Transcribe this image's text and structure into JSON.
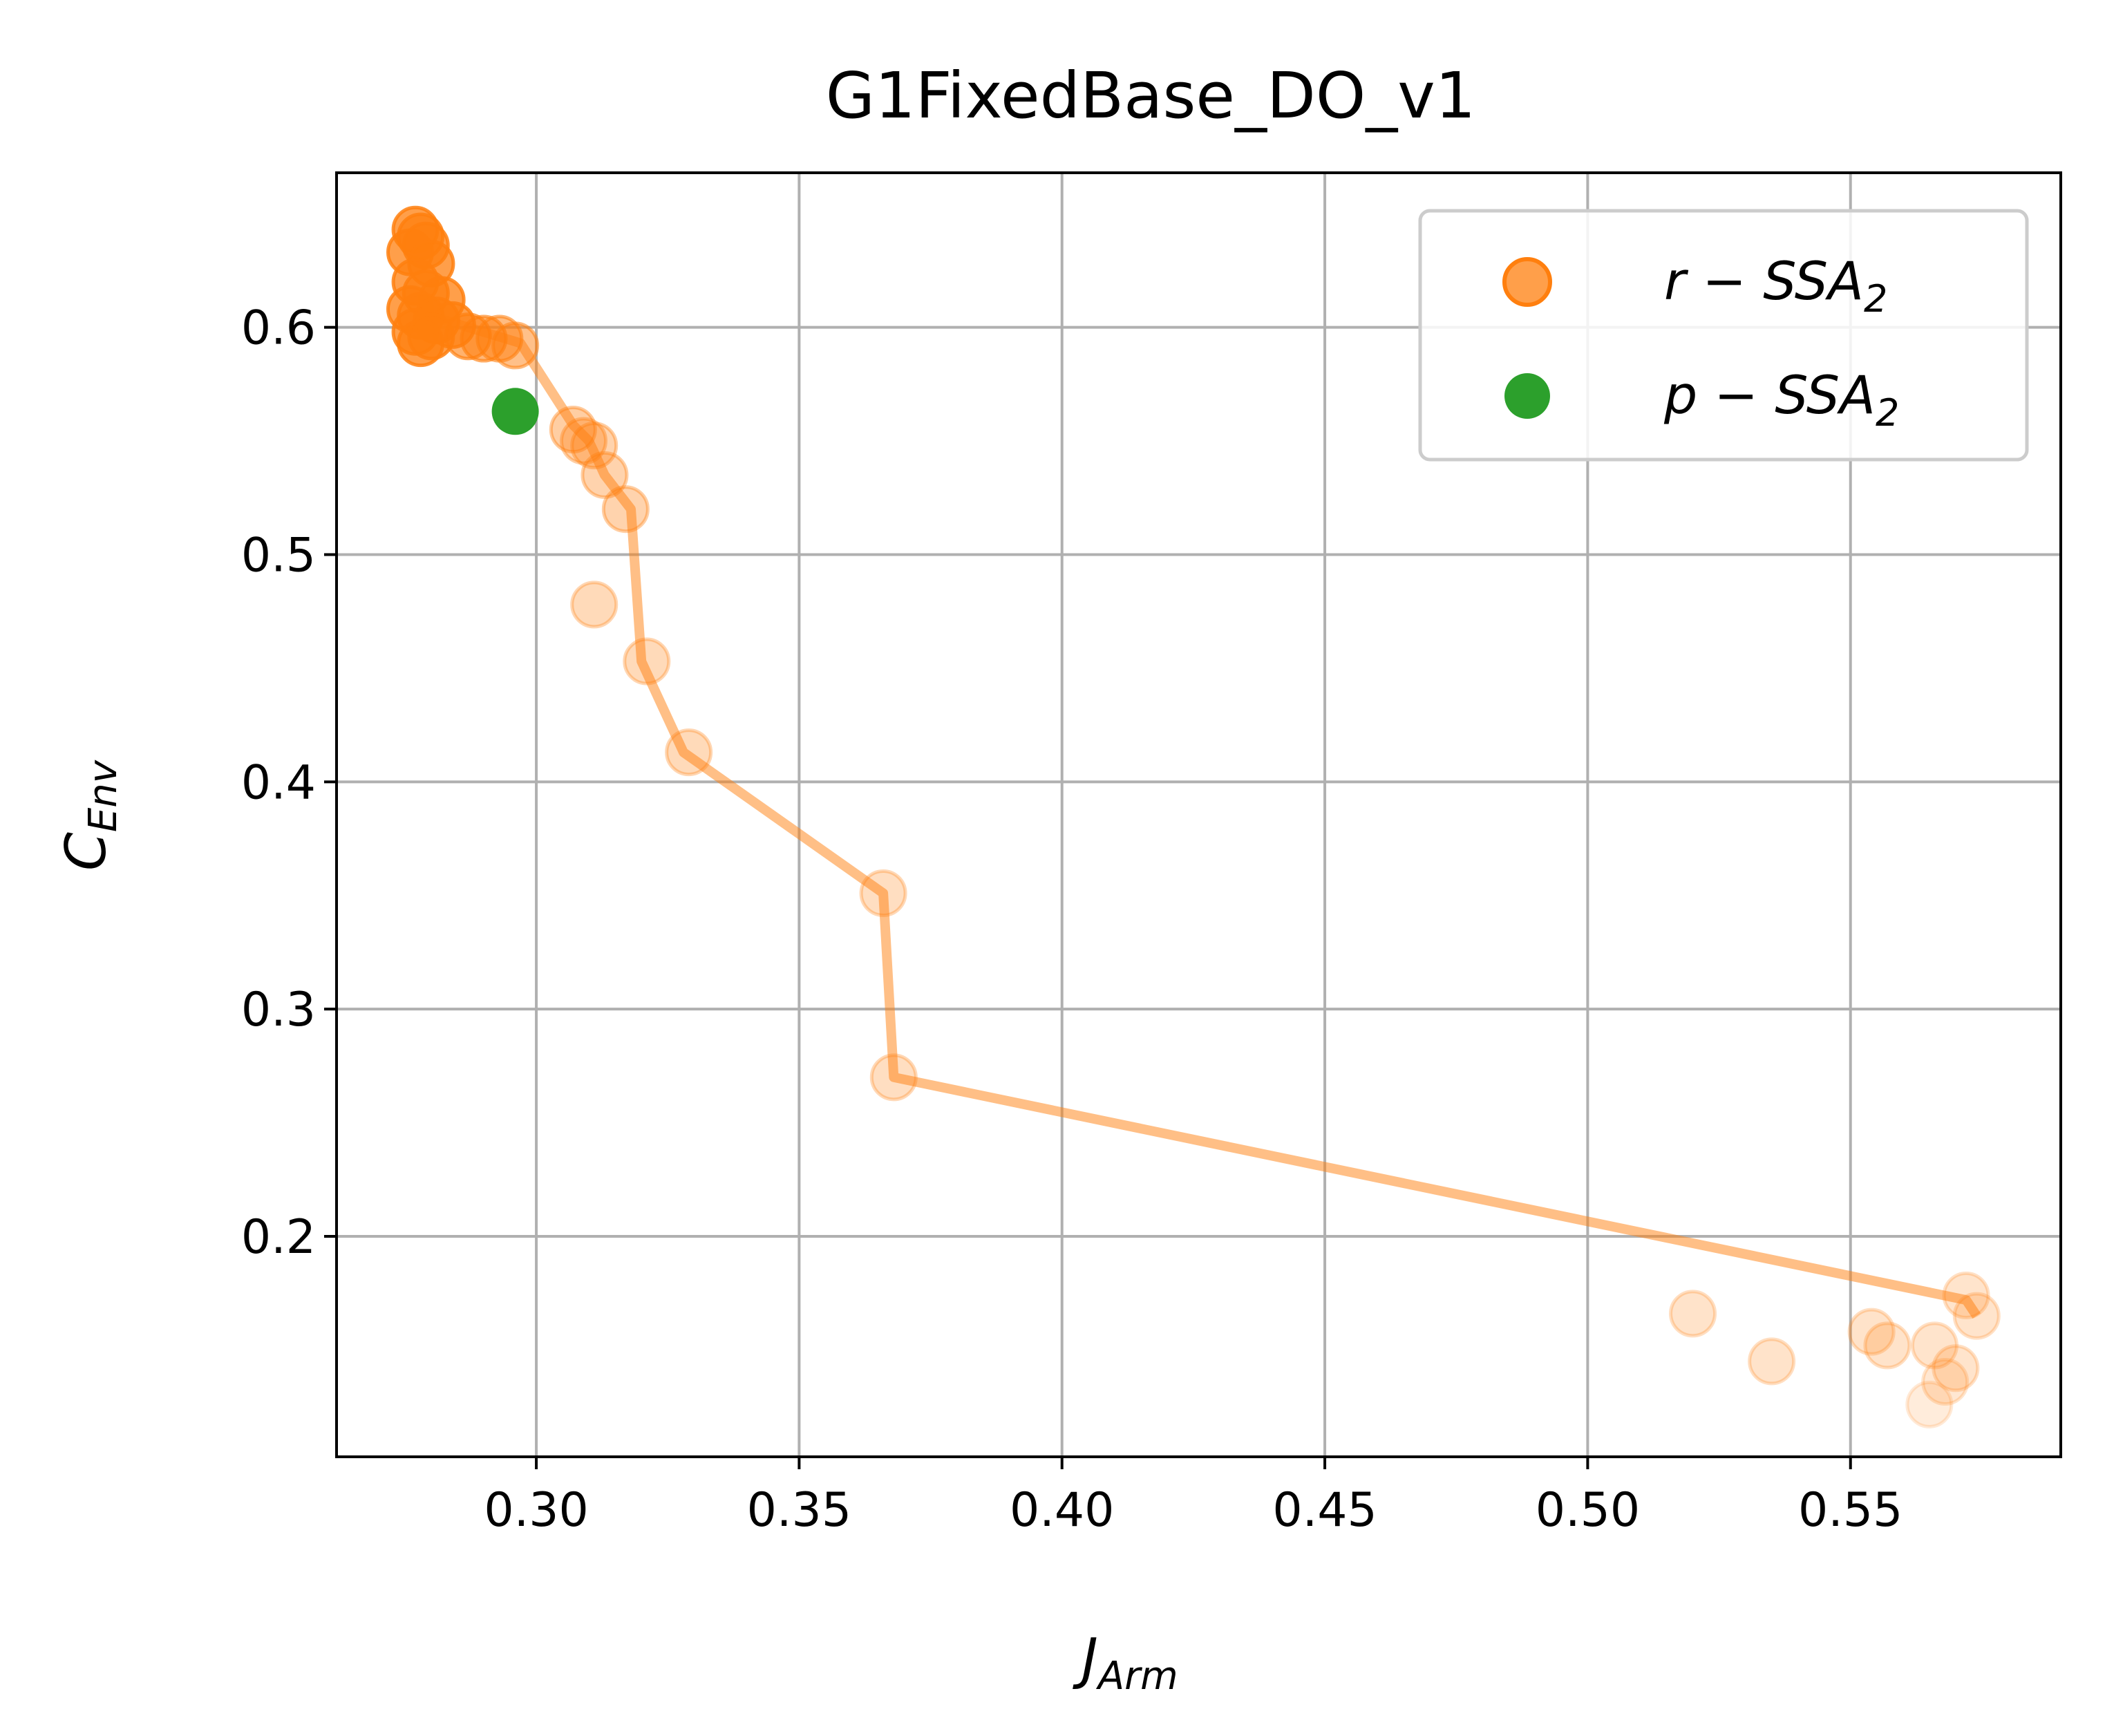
{
  "chart_data": {
    "type": "scatter",
    "title": "G1FixedBase_DO_v1",
    "xlabel": {
      "main": "J",
      "sub": "Arm"
    },
    "ylabel": {
      "main": "C",
      "sub": "Env"
    },
    "xlim": [
      0.262,
      0.59
    ],
    "ylim": [
      0.103,
      0.668
    ],
    "xticks": [
      0.3,
      0.35,
      0.4,
      0.45,
      0.5,
      0.55
    ],
    "xtick_labels": [
      "0.30",
      "0.35",
      "0.40",
      "0.45",
      "0.50",
      "0.55"
    ],
    "yticks": [
      0.2,
      0.3,
      0.4,
      0.5,
      0.6
    ],
    "ytick_labels": [
      "0.2",
      "0.3",
      "0.4",
      "0.5",
      "0.6"
    ],
    "grid": true,
    "legend_position": "top-right",
    "colors": {
      "r_ssa": "#ff7f0e",
      "p_ssa": "#2ca02c",
      "grid": "#b0b0b0"
    },
    "series": [
      {
        "name": "r-SSA2",
        "legend_label": {
          "main": "r − SSA",
          "sub": "2"
        },
        "type": "scatter",
        "points": [
          {
            "x": 0.277,
            "y": 0.643,
            "a": 1.0
          },
          {
            "x": 0.278,
            "y": 0.64,
            "a": 1.0
          },
          {
            "x": 0.279,
            "y": 0.636,
            "a": 1.0
          },
          {
            "x": 0.276,
            "y": 0.633,
            "a": 1.0
          },
          {
            "x": 0.28,
            "y": 0.628,
            "a": 1.0
          },
          {
            "x": 0.277,
            "y": 0.62,
            "a": 1.0
          },
          {
            "x": 0.279,
            "y": 0.615,
            "a": 1.0
          },
          {
            "x": 0.282,
            "y": 0.612,
            "a": 1.0
          },
          {
            "x": 0.276,
            "y": 0.608,
            "a": 1.0
          },
          {
            "x": 0.278,
            "y": 0.605,
            "a": 1.0
          },
          {
            "x": 0.281,
            "y": 0.603,
            "a": 1.0
          },
          {
            "x": 0.284,
            "y": 0.601,
            "a": 1.0
          },
          {
            "x": 0.277,
            "y": 0.598,
            "a": 1.0
          },
          {
            "x": 0.278,
            "y": 0.593,
            "a": 1.0
          },
          {
            "x": 0.28,
            "y": 0.596,
            "a": 1.0
          },
          {
            "x": 0.287,
            "y": 0.596,
            "a": 0.8
          },
          {
            "x": 0.29,
            "y": 0.595,
            "a": 0.75
          },
          {
            "x": 0.293,
            "y": 0.595,
            "a": 0.7
          },
          {
            "x": 0.296,
            "y": 0.592,
            "a": 0.65
          },
          {
            "x": 0.307,
            "y": 0.555,
            "a": 0.5
          },
          {
            "x": 0.309,
            "y": 0.55,
            "a": 0.45
          },
          {
            "x": 0.311,
            "y": 0.548,
            "a": 0.45
          },
          {
            "x": 0.313,
            "y": 0.535,
            "a": 0.45
          },
          {
            "x": 0.317,
            "y": 0.52,
            "a": 0.45
          },
          {
            "x": 0.311,
            "y": 0.478,
            "a": 0.38
          },
          {
            "x": 0.321,
            "y": 0.453,
            "a": 0.38
          },
          {
            "x": 0.329,
            "y": 0.413,
            "a": 0.38
          },
          {
            "x": 0.366,
            "y": 0.351,
            "a": 0.35
          },
          {
            "x": 0.368,
            "y": 0.27,
            "a": 0.35
          },
          {
            "x": 0.52,
            "y": 0.166,
            "a": 0.3
          },
          {
            "x": 0.535,
            "y": 0.145,
            "a": 0.3
          },
          {
            "x": 0.554,
            "y": 0.158,
            "a": 0.3
          },
          {
            "x": 0.557,
            "y": 0.152,
            "a": 0.3
          },
          {
            "x": 0.566,
            "y": 0.152,
            "a": 0.28
          },
          {
            "x": 0.572,
            "y": 0.174,
            "a": 0.28
          },
          {
            "x": 0.574,
            "y": 0.165,
            "a": 0.28
          },
          {
            "x": 0.57,
            "y": 0.142,
            "a": 0.28
          },
          {
            "x": 0.568,
            "y": 0.136,
            "a": 0.25
          },
          {
            "x": 0.565,
            "y": 0.126,
            "a": 0.2
          }
        ]
      },
      {
        "name": "r-SSA2 front",
        "type": "line",
        "points": [
          {
            "x": 0.277,
            "y": 0.607
          },
          {
            "x": 0.297,
            "y": 0.593
          },
          {
            "x": 0.307,
            "y": 0.557
          },
          {
            "x": 0.31,
            "y": 0.55
          },
          {
            "x": 0.313,
            "y": 0.535
          },
          {
            "x": 0.318,
            "y": 0.52
          },
          {
            "x": 0.32,
            "y": 0.453
          },
          {
            "x": 0.328,
            "y": 0.413
          },
          {
            "x": 0.366,
            "y": 0.351
          },
          {
            "x": 0.368,
            "y": 0.27
          },
          {
            "x": 0.572,
            "y": 0.172
          },
          {
            "x": 0.574,
            "y": 0.165
          }
        ]
      },
      {
        "name": "p-SSA2",
        "legend_label": {
          "main": "p − SSA",
          "sub": "2"
        },
        "type": "scatter",
        "points": [
          {
            "x": 0.296,
            "y": 0.563,
            "a": 1.0
          }
        ]
      }
    ]
  }
}
